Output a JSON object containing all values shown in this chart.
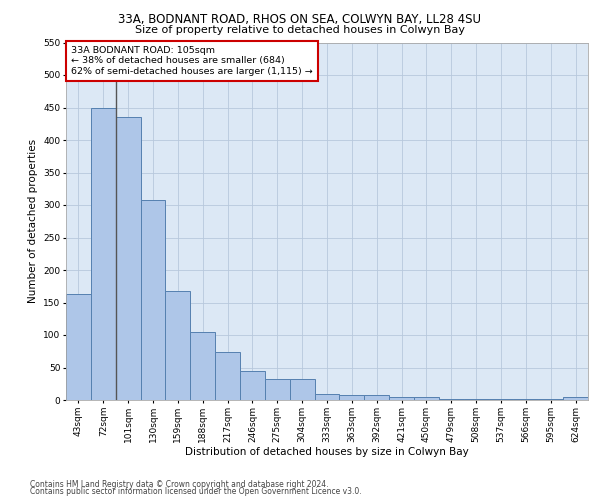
{
  "title1": "33A, BODNANT ROAD, RHOS ON SEA, COLWYN BAY, LL28 4SU",
  "title2": "Size of property relative to detached houses in Colwyn Bay",
  "xlabel": "Distribution of detached houses by size in Colwyn Bay",
  "ylabel": "Number of detached properties",
  "categories": [
    "43sqm",
    "72sqm",
    "101sqm",
    "130sqm",
    "159sqm",
    "188sqm",
    "217sqm",
    "246sqm",
    "275sqm",
    "304sqm",
    "333sqm",
    "363sqm",
    "392sqm",
    "421sqm",
    "450sqm",
    "479sqm",
    "508sqm",
    "537sqm",
    "566sqm",
    "595sqm",
    "624sqm"
  ],
  "values": [
    163,
    450,
    435,
    307,
    167,
    105,
    74,
    45,
    32,
    32,
    10,
    8,
    8,
    5,
    4,
    2,
    2,
    2,
    2,
    2,
    5
  ],
  "bar_color": "#aec6e8",
  "bar_edge_color": "#5580b0",
  "highlight_index": 2,
  "highlight_line_color": "#555555",
  "annotation_text": "33A BODNANT ROAD: 105sqm\n← 38% of detached houses are smaller (684)\n62% of semi-detached houses are larger (1,115) →",
  "annotation_box_color": "#ffffff",
  "annotation_box_edge_color": "#cc0000",
  "footer1": "Contains HM Land Registry data © Crown copyright and database right 2024.",
  "footer2": "Contains public sector information licensed under the Open Government Licence v3.0.",
  "ylim": [
    0,
    550
  ],
  "yticks": [
    0,
    50,
    100,
    150,
    200,
    250,
    300,
    350,
    400,
    450,
    500,
    550
  ],
  "background_color": "#ffffff",
  "plot_bg_color": "#dce8f5",
  "grid_color": "#b8c8dc",
  "title1_fontsize": 8.5,
  "title2_fontsize": 8.0,
  "xlabel_fontsize": 7.5,
  "ylabel_fontsize": 7.5,
  "tick_fontsize": 6.5,
  "ann_fontsize": 6.8,
  "footer_fontsize": 5.5
}
